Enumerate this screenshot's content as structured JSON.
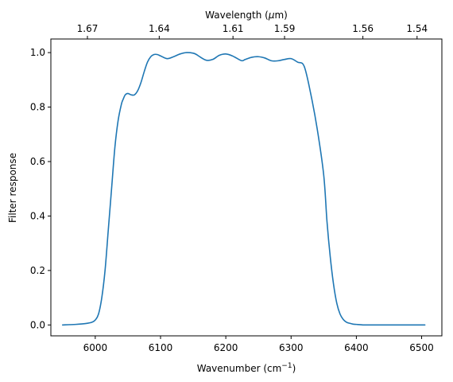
{
  "chart_data": {
    "type": "line",
    "title": "",
    "xlabel": "Wavenumber (cm⁻¹)",
    "ylabel": "Filter response",
    "top_xlabel": "Wavelength (μm)",
    "xlim": [
      5932,
      6531
    ],
    "ylim": [
      -0.04,
      1.05
    ],
    "x_ticks": [
      6000,
      6100,
      6200,
      6300,
      6400,
      6500
    ],
    "y_ticks": [
      0.0,
      0.2,
      0.4,
      0.6,
      0.8,
      1.0
    ],
    "y_tick_labels": [
      "0.0",
      "0.2",
      "0.4",
      "0.6",
      "0.8",
      "1.0"
    ],
    "top_ticks": [
      {
        "label": "1.67",
        "wavenumber": 5988
      },
      {
        "label": "1.64",
        "wavenumber": 6098
      },
      {
        "label": "1.61",
        "wavenumber": 6211
      },
      {
        "label": "1.59",
        "wavenumber": 6290
      },
      {
        "label": "1.56",
        "wavenumber": 6410
      },
      {
        "label": "1.54",
        "wavenumber": 6493
      }
    ],
    "grid": false,
    "color": "#1f77b4",
    "series": [
      {
        "x": [
          5950,
          5970,
          5985,
          5995,
          6000,
          6005,
          6010,
          6015,
          6020,
          6025,
          6030,
          6035,
          6040,
          6043,
          6046,
          6050,
          6055,
          6060,
          6065,
          6070,
          6075,
          6080,
          6085,
          6090,
          6095,
          6100,
          6110,
          6120,
          6130,
          6140,
          6150,
          6155,
          6160,
          6170,
          6180,
          6190,
          6200,
          6210,
          6220,
          6225,
          6230,
          6240,
          6250,
          6260,
          6270,
          6280,
          6290,
          6300,
          6310,
          6320,
          6330,
          6340,
          6350,
          6355,
          6360,
          6365,
          6370,
          6375,
          6380,
          6385,
          6390,
          6395,
          6400,
          6405,
          6410,
          6415,
          6420,
          6430,
          6440,
          6450,
          6470,
          6490,
          6505
        ],
        "y": [
          0.0,
          0.002,
          0.005,
          0.01,
          0.018,
          0.04,
          0.1,
          0.2,
          0.35,
          0.5,
          0.65,
          0.75,
          0.81,
          0.83,
          0.845,
          0.85,
          0.845,
          0.845,
          0.86,
          0.89,
          0.93,
          0.965,
          0.985,
          0.993,
          0.993,
          0.988,
          0.978,
          0.985,
          0.995,
          1.0,
          0.998,
          0.993,
          0.985,
          0.972,
          0.975,
          0.99,
          0.995,
          0.988,
          0.975,
          0.97,
          0.975,
          0.983,
          0.985,
          0.98,
          0.97,
          0.97,
          0.975,
          0.978,
          0.965,
          0.95,
          0.85,
          0.72,
          0.55,
          0.38,
          0.25,
          0.15,
          0.08,
          0.04,
          0.02,
          0.01,
          0.006,
          0.003,
          0.002,
          0.001,
          0.0,
          0.0,
          0.0,
          0.0,
          0.0,
          0.0,
          0.0,
          0.0,
          0.0
        ]
      }
    ]
  }
}
